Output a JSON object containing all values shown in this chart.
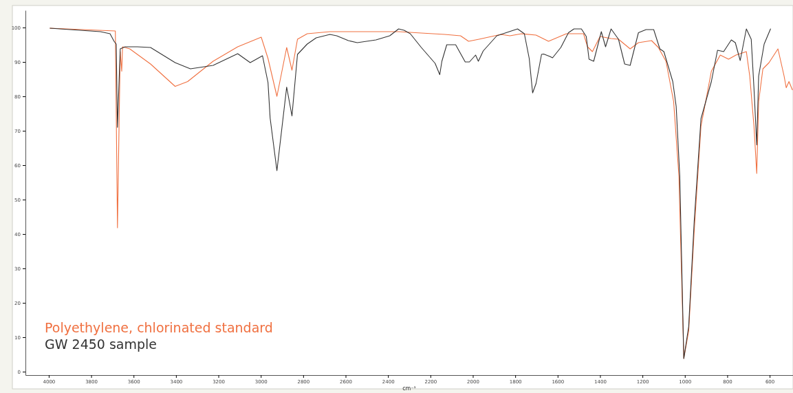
{
  "chart_data": {
    "type": "line",
    "xlabel": "cm⁻¹",
    "xlim": [
      4110,
      490
    ],
    "ylim": [
      -1,
      105
    ],
    "xticks": [
      4000,
      3800,
      3600,
      3400,
      3200,
      3000,
      2800,
      2600,
      2400,
      2200,
      2000,
      1800,
      1600,
      1400,
      1200,
      1000,
      800,
      600
    ],
    "yticks": [
      0,
      10,
      20,
      30,
      40,
      50,
      60,
      70,
      80,
      90,
      100
    ],
    "grid": false,
    "legend": "bottom left",
    "line_style": "solid",
    "marker": "none",
    "series": [
      {
        "name": "Polyethylene, chlorinated standard",
        "color": "#f07040",
        "x": [
          3994,
          3686,
          3676,
          3663,
          3656,
          3652,
          3618,
          3520,
          3404,
          3345,
          3225,
          3109,
          2998,
          2966,
          2924,
          2878,
          2853,
          2827,
          2781,
          2674,
          2350,
          2243,
          2133,
          2058,
          2020,
          1971,
          1867,
          1825,
          1770,
          1702,
          1643,
          1559,
          1478,
          1459,
          1436,
          1400,
          1348,
          1313,
          1258,
          1219,
          1157,
          1125,
          1089,
          1053,
          1028,
          1005,
          982,
          956,
          924,
          875,
          833,
          794,
          759,
          710,
          694,
          674,
          661,
          652,
          632,
          603,
          561,
          532,
          522,
          509,
          493
        ],
        "values": [
          99.8,
          99,
          41.8,
          93,
          87.3,
          94.4,
          93.8,
          89.4,
          82.9,
          84.3,
          90.2,
          94.4,
          97.2,
          91,
          80,
          94.2,
          87.6,
          96.6,
          98.2,
          98.8,
          98.8,
          98.4,
          98,
          97.6,
          96,
          96.6,
          98,
          97.6,
          98.2,
          97.8,
          96,
          98.2,
          98.2,
          94.4,
          93,
          97.4,
          96.8,
          96.6,
          93.8,
          95.6,
          96.2,
          94.2,
          90.2,
          78.5,
          56.8,
          3.8,
          11.8,
          40.8,
          71.3,
          87.3,
          92,
          90.8,
          92,
          93,
          85.9,
          71.3,
          57.6,
          78.5,
          88,
          89.8,
          93.8,
          85.9,
          82.5,
          84.3,
          81.9
        ]
      },
      {
        "name": "GW 2450 sample",
        "color": "#333333",
        "x": [
          3994,
          3757,
          3711,
          3692,
          3682,
          3676,
          3663,
          3640,
          3582,
          3520,
          3404,
          3332,
          3225,
          3109,
          3050,
          2992,
          2966,
          2956,
          2924,
          2878,
          2853,
          2827,
          2781,
          2739,
          2674,
          2642,
          2587,
          2545,
          2457,
          2392,
          2350,
          2324,
          2295,
          2243,
          2178,
          2156,
          2146,
          2123,
          2081,
          2036,
          2016,
          1987,
          1974,
          1951,
          1887,
          1789,
          1757,
          1734,
          1718,
          1702,
          1676,
          1666,
          1637,
          1624,
          1585,
          1549,
          1523,
          1488,
          1465,
          1452,
          1430,
          1394,
          1374,
          1348,
          1313,
          1284,
          1258,
          1219,
          1183,
          1147,
          1118,
          1099,
          1057,
          1041,
          1024,
          1005,
          982,
          956,
          924,
          875,
          846,
          817,
          781,
          762,
          739,
          710,
          687,
          674,
          661,
          652,
          626,
          596
        ],
        "values": [
          99.8,
          98.8,
          98.2,
          96,
          95.2,
          71,
          93.8,
          94.4,
          94.4,
          94.2,
          89.8,
          88,
          89,
          92.4,
          89.8,
          91.8,
          84,
          73.7,
          58.4,
          82.7,
          74.3,
          92.2,
          95.2,
          97,
          98,
          97.6,
          96.2,
          95.6,
          96.4,
          97.6,
          99.6,
          99.2,
          98.2,
          94.2,
          89.6,
          86.3,
          90.2,
          95,
          95,
          90,
          90,
          92,
          90.2,
          93.2,
          97.6,
          99.6,
          98.2,
          91,
          81,
          83.7,
          92.2,
          92.3,
          91.6,
          91.2,
          94.2,
          98.5,
          99.6,
          99.6,
          97.4,
          90.8,
          90.2,
          98.8,
          94.4,
          99.6,
          96.6,
          89.4,
          89,
          98.5,
          99.4,
          99.4,
          93.8,
          93,
          84.3,
          77.1,
          56.8,
          3.8,
          13.1,
          43.6,
          73.5,
          84.3,
          93.4,
          93,
          96.4,
          95.6,
          90.4,
          99.6,
          96.6,
          82.3,
          65.9,
          85.9,
          95.2,
          99.6
        ]
      }
    ]
  }
}
